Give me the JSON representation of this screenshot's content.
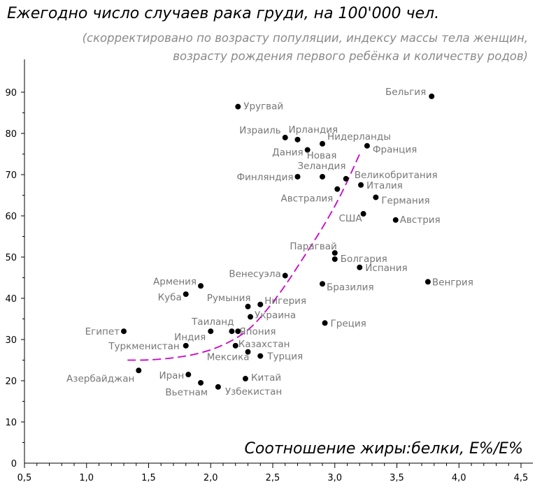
{
  "chart_data": {
    "type": "scatter",
    "title": "Ежегодно число случаев рака груди, на 100'000 чел.",
    "subtitle_lines": [
      "(скорректировано по возрасту популяции, индексу массы тела женщин,",
      "возрасту рождения первого ребёнка и количеству родов)"
    ],
    "xlabel": "Соотношение жиры:белки, E%/E%",
    "ylabel": "",
    "xlim": [
      0.5,
      4.5
    ],
    "ylim": [
      0,
      95
    ],
    "x_ticks": [
      "0,5",
      "1,0",
      "1,5",
      "2,0",
      "2,5",
      "3,0",
      "3,5",
      "4,0",
      "4,5"
    ],
    "y_ticks": [
      "0",
      "10",
      "20",
      "30",
      "40",
      "50",
      "60",
      "70",
      "80",
      "90"
    ],
    "grid": false,
    "point_color": "#000000",
    "trend_color": "#cc00cc",
    "points": [
      {
        "label": "Бельгия",
        "x": 3.78,
        "y": 89
      },
      {
        "label": "Уругвай",
        "x": 2.22,
        "y": 86.5
      },
      {
        "label": "Израиль",
        "x": 2.6,
        "y": 79
      },
      {
        "label": "Ирландия",
        "x": 2.7,
        "y": 78.5
      },
      {
        "label": "Нидерланды",
        "x": 2.9,
        "y": 77.5
      },
      {
        "label": "Франция",
        "x": 3.26,
        "y": 77
      },
      {
        "label": "Дания",
        "x": 2.78,
        "y": 76
      },
      {
        "label": "Новая",
        "x": 2.9,
        "y": 69.5,
        "label2": "Зеландия"
      },
      {
        "label": "Финляндия",
        "x": 2.7,
        "y": 69.5
      },
      {
        "label": "Великобритания",
        "x": 3.09,
        "y": 69
      },
      {
        "label": "Италия",
        "x": 3.21,
        "y": 67.5
      },
      {
        "label": "Австралия",
        "x": 3.02,
        "y": 66.5
      },
      {
        "label": "Германия",
        "x": 3.33,
        "y": 64.5
      },
      {
        "label": "США",
        "x": 3.23,
        "y": 60.5
      },
      {
        "label": "Австрия",
        "x": 3.49,
        "y": 59
      },
      {
        "label": "Парагвай",
        "x": 3.0,
        "y": 51
      },
      {
        "label": "Болгария",
        "x": 3.0,
        "y": 49.5
      },
      {
        "label": "Испания",
        "x": 3.2,
        "y": 47.5
      },
      {
        "label": "Венесуэла",
        "x": 2.6,
        "y": 45.5
      },
      {
        "label": "Венгрия",
        "x": 3.75,
        "y": 44
      },
      {
        "label": "Бразилия",
        "x": 2.9,
        "y": 43.5
      },
      {
        "label": "Армения",
        "x": 1.92,
        "y": 43
      },
      {
        "label": "Куба",
        "x": 1.8,
        "y": 41
      },
      {
        "label": "Нигерия",
        "x": 2.4,
        "y": 38.5
      },
      {
        "label": "Румыния",
        "x": 2.3,
        "y": 38
      },
      {
        "label": "Украина",
        "x": 2.32,
        "y": 35.5
      },
      {
        "label": "Греция",
        "x": 2.92,
        "y": 34
      },
      {
        "label": "Египет",
        "x": 1.3,
        "y": 32
      },
      {
        "label": "Таиланд",
        "x": 2.17,
        "y": 32
      },
      {
        "label": "Япония",
        "x": 2.22,
        "y": 32
      },
      {
        "label": "Индия",
        "x": 2.0,
        "y": 32
      },
      {
        "label": "Туркменистан",
        "x": 1.8,
        "y": 28.5
      },
      {
        "label": "Казахстан",
        "x": 2.2,
        "y": 28.5
      },
      {
        "label": "Мексика",
        "x": 2.3,
        "y": 27
      },
      {
        "label": "Турция",
        "x": 2.4,
        "y": 26
      },
      {
        "label": "Азербайджан",
        "x": 1.42,
        "y": 22.5
      },
      {
        "label": "Иран",
        "x": 1.82,
        "y": 21.5
      },
      {
        "label": "Китай",
        "x": 2.28,
        "y": 20.5
      },
      {
        "label": "Вьетнам",
        "x": 1.92,
        "y": 19.5
      },
      {
        "label": "Узбекистан",
        "x": 2.06,
        "y": 18.5
      }
    ],
    "trend_line": [
      {
        "x": 1.33,
        "y": 25
      },
      {
        "x": 1.5,
        "y": 25
      },
      {
        "x": 1.7,
        "y": 25.5
      },
      {
        "x": 1.9,
        "y": 26.5
      },
      {
        "x": 2.1,
        "y": 28.5
      },
      {
        "x": 2.3,
        "y": 32
      },
      {
        "x": 2.45,
        "y": 37
      },
      {
        "x": 2.6,
        "y": 43
      },
      {
        "x": 2.75,
        "y": 50
      },
      {
        "x": 2.9,
        "y": 57
      },
      {
        "x": 3.05,
        "y": 65
      },
      {
        "x": 3.2,
        "y": 75
      }
    ]
  }
}
